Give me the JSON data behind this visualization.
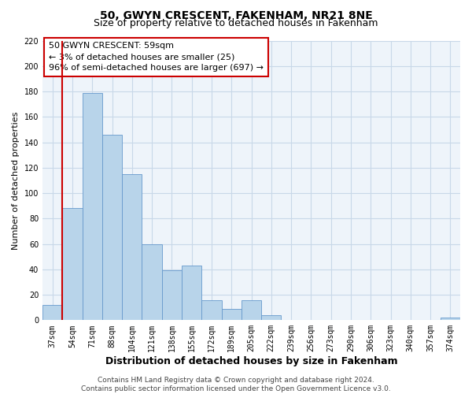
{
  "title": "50, GWYN CRESCENT, FAKENHAM, NR21 8NE",
  "subtitle": "Size of property relative to detached houses in Fakenham",
  "xlabel": "Distribution of detached houses by size in Fakenham",
  "ylabel": "Number of detached properties",
  "bar_labels": [
    "37sqm",
    "54sqm",
    "71sqm",
    "88sqm",
    "104sqm",
    "121sqm",
    "138sqm",
    "155sqm",
    "172sqm",
    "189sqm",
    "205sqm",
    "222sqm",
    "239sqm",
    "256sqm",
    "273sqm",
    "290sqm",
    "306sqm",
    "323sqm",
    "340sqm",
    "357sqm",
    "374sqm"
  ],
  "bar_values": [
    12,
    88,
    179,
    146,
    115,
    60,
    39,
    43,
    16,
    9,
    16,
    4,
    0,
    0,
    0,
    0,
    0,
    0,
    0,
    0,
    2
  ],
  "bar_color": "#b8d4ea",
  "bar_edge_color": "#6699cc",
  "marker_color": "#cc0000",
  "ylim": [
    0,
    220
  ],
  "yticks": [
    0,
    20,
    40,
    60,
    80,
    100,
    120,
    140,
    160,
    180,
    200,
    220
  ],
  "annotation_line1": "50 GWYN CRESCENT: 59sqm",
  "annotation_line2": "← 3% of detached houses are smaller (25)",
  "annotation_line3": "96% of semi-detached houses are larger (697) →",
  "footer_line1": "Contains HM Land Registry data © Crown copyright and database right 2024.",
  "footer_line2": "Contains public sector information licensed under the Open Government Licence v3.0.",
  "title_fontsize": 10,
  "subtitle_fontsize": 9,
  "xlabel_fontsize": 9,
  "ylabel_fontsize": 8,
  "tick_fontsize": 7,
  "annotation_fontsize": 8,
  "footer_fontsize": 6.5,
  "grid_color": "#c8d8e8",
  "bg_color": "#eef4fa"
}
